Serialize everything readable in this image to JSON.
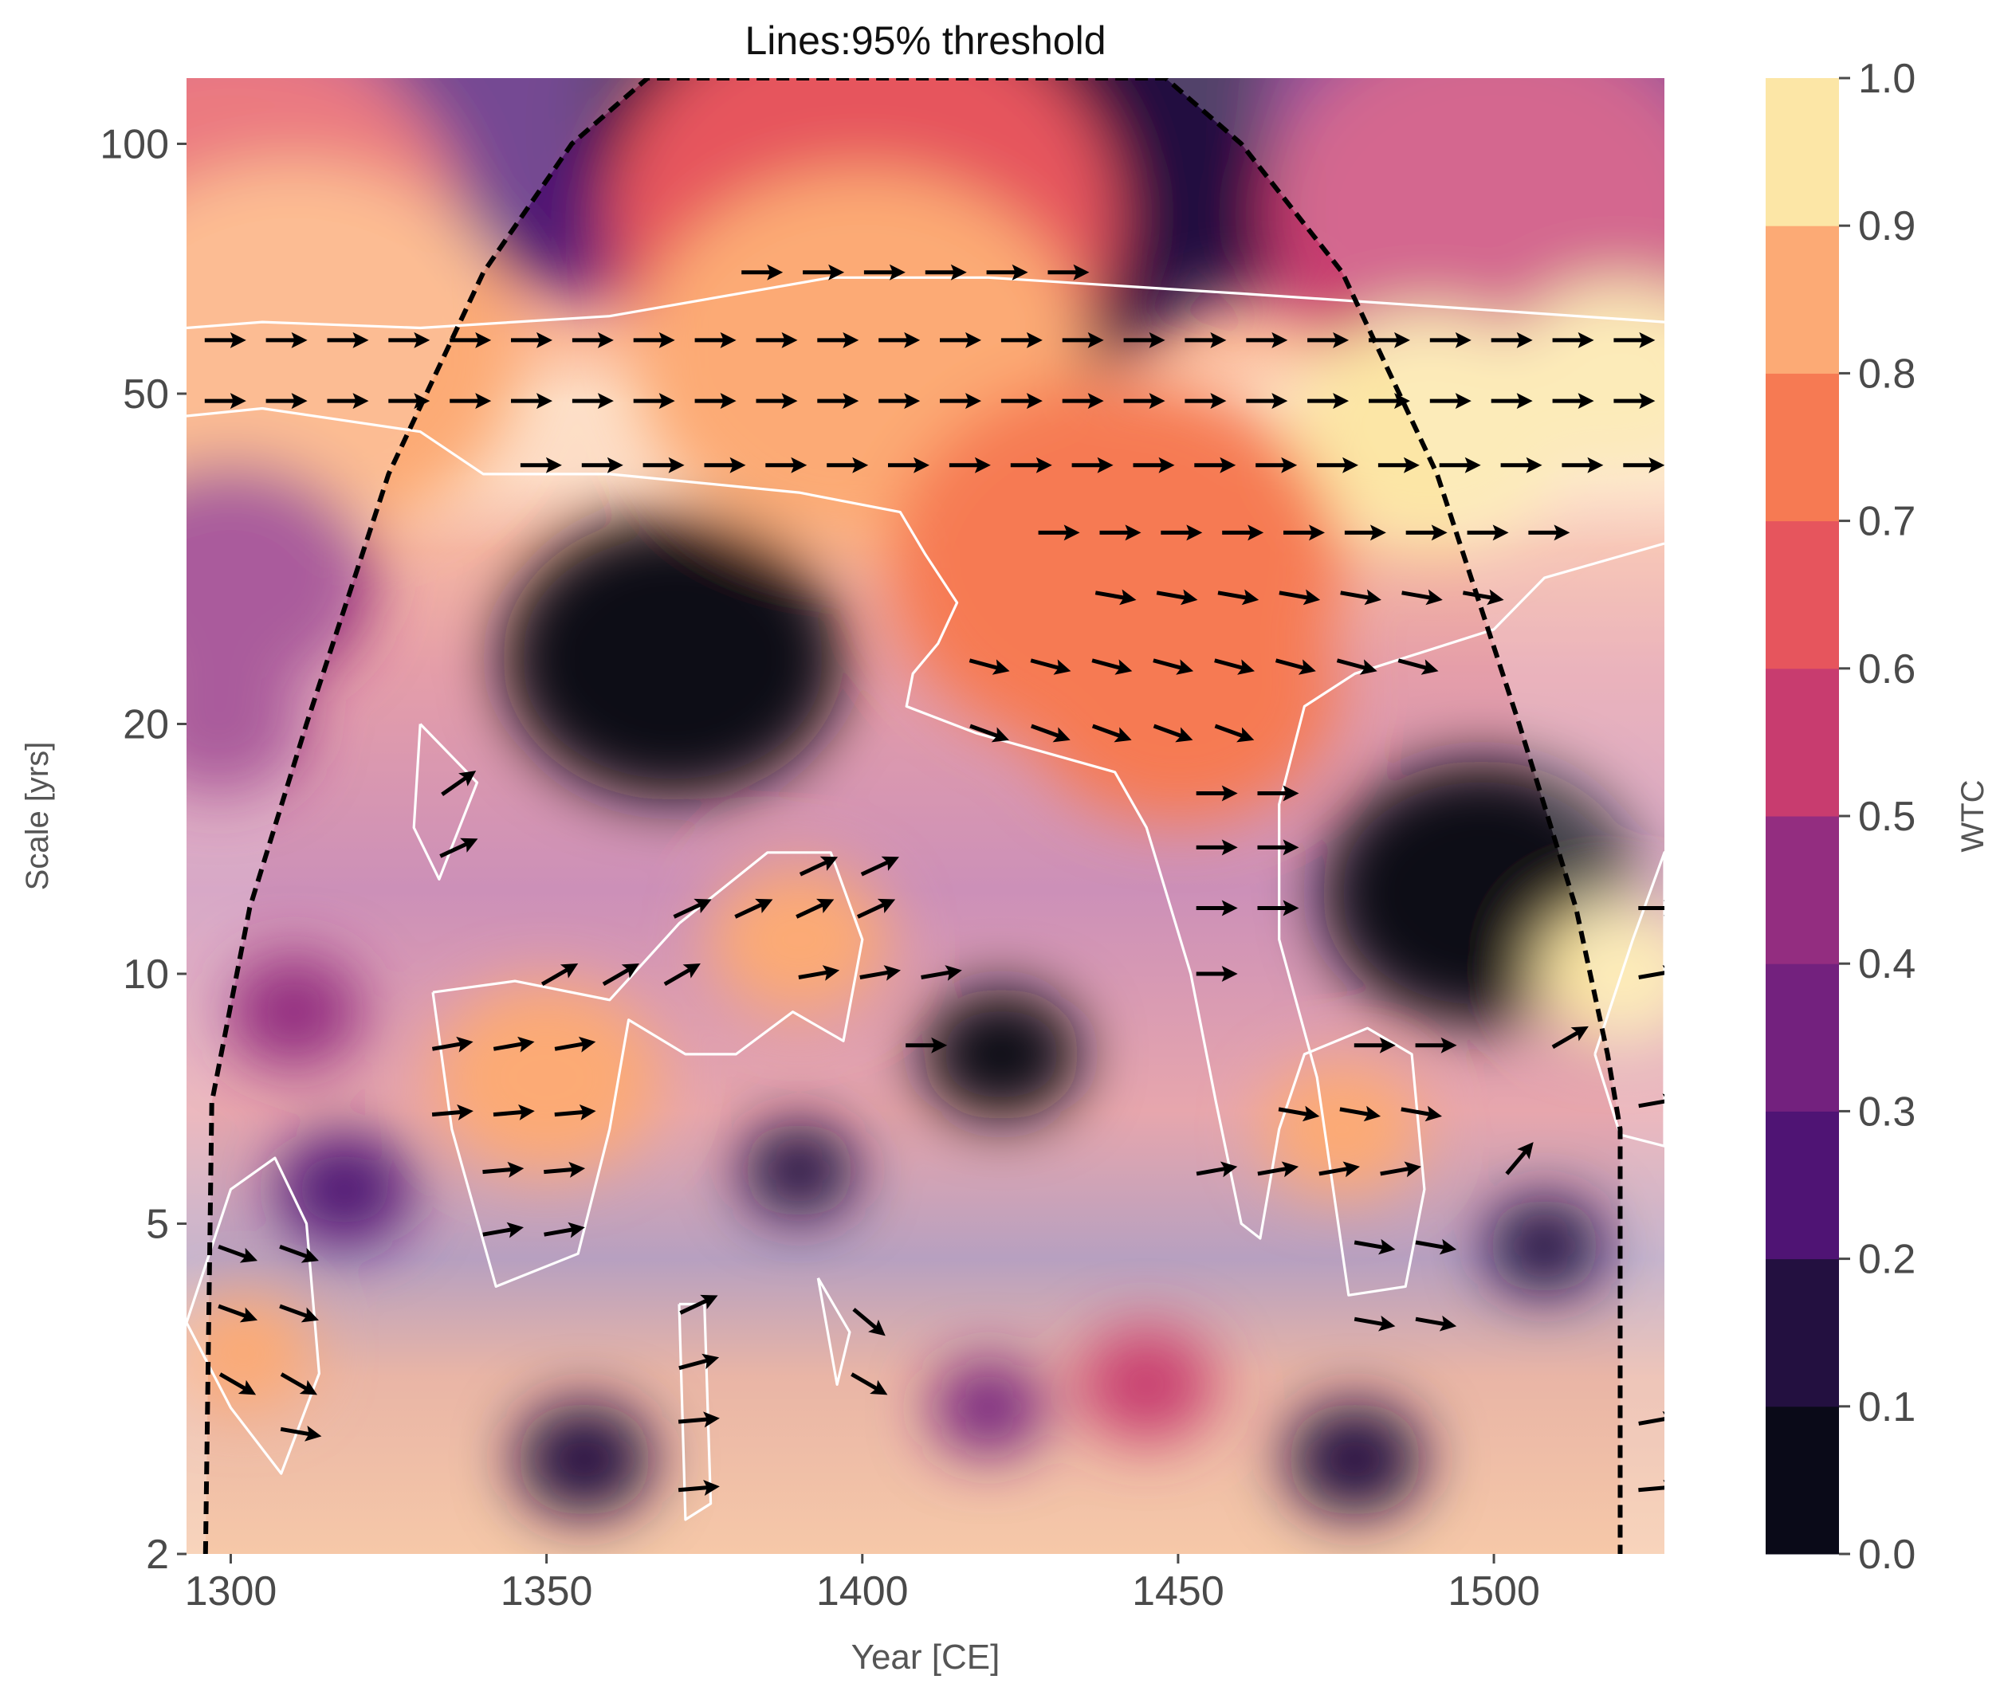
{
  "chart_data": {
    "type": "heatmap",
    "title": "Lines:95% threshold",
    "xlabel": "Year [CE]",
    "ylabel": "Scale [yrs]",
    "colorbar_label": "WTC",
    "xlim": [
      1293,
      1527
    ],
    "ylim": [
      2,
      120
    ],
    "y_scale": "log",
    "x_ticks": [
      1300,
      1350,
      1400,
      1450,
      1500
    ],
    "x_tick_labels": [
      "1300",
      "1350",
      "1400",
      "1450",
      "1500"
    ],
    "y_ticks": [
      2,
      5,
      10,
      20,
      50,
      100
    ],
    "y_tick_labels": [
      "2",
      "5",
      "10",
      "20",
      "50",
      "100"
    ],
    "colorbar_ticks": [
      "0.0",
      "0.1",
      "0.2",
      "0.3",
      "0.4",
      "0.5",
      "0.6",
      "0.7",
      "0.8",
      "0.9",
      "1.0"
    ],
    "colorbar_levels": [
      0.0,
      0.1,
      0.2,
      0.3,
      0.4,
      0.5,
      0.6,
      0.7,
      0.8,
      0.9,
      1.0
    ],
    "colormap": [
      "#0a0a18",
      "#231040",
      "#4f1474",
      "#73217e",
      "#932d80",
      "#c83c6f",
      "#e6555d",
      "#f67a53",
      "#fcaa75",
      "#fce6a6"
    ],
    "cone_of_influence": [
      [
        1296,
        2
      ],
      [
        1297,
        7
      ],
      [
        1303,
        12
      ],
      [
        1312,
        20
      ],
      [
        1325,
        40
      ],
      [
        1340,
        70
      ],
      [
        1354,
        100
      ],
      [
        1366,
        120
      ],
      [
        1448,
        120
      ],
      [
        1460,
        100
      ],
      [
        1476,
        70
      ],
      [
        1491,
        40
      ],
      [
        1504,
        20
      ],
      [
        1513,
        12
      ],
      [
        1518,
        8
      ],
      [
        1520,
        6.5
      ],
      [
        1520,
        2
      ]
    ],
    "significance_contours": [
      [
        [
          1293,
          60
        ],
        [
          1305,
          61
        ],
        [
          1330,
          60
        ],
        [
          1360,
          62
        ],
        [
          1395,
          69
        ],
        [
          1420,
          69
        ],
        [
          1460,
          66
        ],
        [
          1500,
          63
        ],
        [
          1527,
          61
        ]
      ],
      [
        [
          1293,
          47
        ],
        [
          1305,
          48
        ],
        [
          1330,
          45
        ],
        [
          1340,
          40
        ],
        [
          1360,
          40
        ],
        [
          1390,
          38
        ],
        [
          1406,
          36
        ],
        [
          1410,
          32
        ],
        [
          1415,
          28
        ],
        [
          1412,
          25
        ],
        [
          1408,
          23
        ],
        [
          1407,
          21
        ],
        [
          1418,
          19.5
        ],
        [
          1440,
          17.5
        ],
        [
          1445,
          15
        ],
        [
          1452,
          10
        ],
        [
          1456,
          7
        ],
        [
          1460,
          5
        ],
        [
          1463,
          4.8
        ],
        [
          1466,
          6.5
        ],
        [
          1470,
          8
        ],
        [
          1480,
          8.6
        ],
        [
          1487,
          8
        ],
        [
          1489,
          5.5
        ],
        [
          1486,
          4.2
        ],
        [
          1477,
          4.1
        ],
        [
          1472,
          7.5
        ],
        [
          1466,
          11
        ],
        [
          1466,
          16
        ],
        [
          1470,
          21
        ],
        [
          1478,
          23
        ],
        [
          1500,
          26
        ],
        [
          1508,
          30
        ],
        [
          1527,
          33
        ]
      ],
      [
        [
          1330,
          20
        ],
        [
          1339,
          17
        ],
        [
          1333,
          13
        ],
        [
          1329,
          15
        ],
        [
          1330,
          20
        ]
      ],
      [
        [
          1293,
          3.8
        ],
        [
          1300,
          5.5
        ],
        [
          1307,
          6
        ],
        [
          1312,
          5
        ],
        [
          1314,
          3.3
        ],
        [
          1308,
          2.5
        ],
        [
          1300,
          3
        ],
        [
          1293,
          3.8
        ]
      ],
      [
        [
          1332,
          9.5
        ],
        [
          1345,
          9.8
        ],
        [
          1360,
          9.3
        ],
        [
          1371,
          11.5
        ],
        [
          1385,
          14
        ],
        [
          1395,
          14
        ],
        [
          1400,
          11
        ],
        [
          1397,
          8.3
        ],
        [
          1389,
          9
        ],
        [
          1380,
          8
        ],
        [
          1372,
          8
        ],
        [
          1363,
          8.8
        ],
        [
          1360,
          6.5
        ],
        [
          1355,
          4.6
        ],
        [
          1342,
          4.2
        ],
        [
          1335,
          6.5
        ],
        [
          1332,
          9.5
        ]
      ],
      [
        [
          1371,
          4
        ],
        [
          1375,
          4
        ],
        [
          1376,
          2.3
        ],
        [
          1372,
          2.2
        ],
        [
          1371,
          4
        ]
      ],
      [
        [
          1516,
          8
        ],
        [
          1522,
          11
        ],
        [
          1527,
          14
        ],
        [
          1527,
          6.2
        ],
        [
          1520,
          6.4
        ],
        [
          1516,
          8
        ]
      ],
      [
        [
          1393,
          4.3
        ],
        [
          1398,
          3.7
        ],
        [
          1396,
          3.2
        ],
        [
          1393,
          4.3
        ]
      ]
    ],
    "phase_arrows": [
      {
        "y": 58,
        "x_start": 1296,
        "x_end": 1525,
        "angle_deg": 0
      },
      {
        "y": 49,
        "x_start": 1296,
        "x_end": 1525,
        "angle_deg": 0
      },
      {
        "y": 70,
        "x_start": 1381,
        "x_end": 1432,
        "angle_deg": 0
      },
      {
        "y": 41,
        "x_start": 1346,
        "x_end": 1525,
        "angle_deg": 0
      },
      {
        "y": 34,
        "x_start": 1428,
        "x_end": 1513,
        "angle_deg": 0
      },
      {
        "y": 28.5,
        "x_start": 1437,
        "x_end": 1498,
        "angle_deg": -10
      },
      {
        "y": 23.5,
        "x_start": 1417,
        "x_end": 1490,
        "angle_deg": -15
      },
      {
        "y": 19.5,
        "x_start": 1417,
        "x_end": 1462,
        "angle_deg": -20
      },
      {
        "y": 17,
        "x_start": 1333,
        "x_end": 1333,
        "angle_deg": 35
      },
      {
        "y": 14.2,
        "x_start": 1333,
        "x_end": 1333,
        "angle_deg": 25
      },
      {
        "y": 13.5,
        "x_start": 1390,
        "x_end": 1400,
        "angle_deg": 25
      },
      {
        "y": 12,
        "x_start": 1370,
        "x_end": 1400,
        "angle_deg": 25
      },
      {
        "y": 10,
        "x_start": 1349,
        "x_end": 1370,
        "angle_deg": 30
      },
      {
        "y": 10,
        "x_start": 1390,
        "x_end": 1410,
        "angle_deg": 10
      },
      {
        "y": 8.2,
        "x_start": 1332,
        "x_end": 1359,
        "angle_deg": 10
      },
      {
        "y": 8.2,
        "x_start": 1407,
        "x_end": 1407,
        "angle_deg": 0
      },
      {
        "y": 6.8,
        "x_start": 1332,
        "x_end": 1359,
        "angle_deg": 5
      },
      {
        "y": 5.8,
        "x_start": 1340,
        "x_end": 1359,
        "angle_deg": 5
      },
      {
        "y": 4.9,
        "x_start": 1340,
        "x_end": 1359,
        "angle_deg": 10
      },
      {
        "y": 14.2,
        "x_start": 1453,
        "x_end": 1463,
        "angle_deg": 0
      },
      {
        "y": 12,
        "x_start": 1453,
        "x_end": 1463,
        "angle_deg": 0
      },
      {
        "y": 16.5,
        "x_start": 1453,
        "x_end": 1463,
        "angle_deg": 0
      },
      {
        "y": 10,
        "x_start": 1453,
        "x_end": 1453,
        "angle_deg": 0
      },
      {
        "y": 8.2,
        "x_start": 1478,
        "x_end": 1488,
        "angle_deg": 0
      },
      {
        "y": 6.8,
        "x_start": 1466,
        "x_end": 1488,
        "angle_deg": -10
      },
      {
        "y": 5.8,
        "x_start": 1453,
        "x_end": 1488,
        "angle_deg": 10
      },
      {
        "y": 4.7,
        "x_start": 1478,
        "x_end": 1488,
        "angle_deg": -10
      },
      {
        "y": 3.8,
        "x_start": 1478,
        "x_end": 1488,
        "angle_deg": -10
      },
      {
        "y": 4.6,
        "x_start": 1298,
        "x_end": 1308,
        "angle_deg": -20
      },
      {
        "y": 3.9,
        "x_start": 1298,
        "x_end": 1308,
        "angle_deg": -20
      },
      {
        "y": 3.2,
        "x_start": 1298,
        "x_end": 1308,
        "angle_deg": -30
      },
      {
        "y": 2.8,
        "x_start": 1308,
        "x_end": 1308,
        "angle_deg": -10
      },
      {
        "y": 4,
        "x_start": 1371,
        "x_end": 1371,
        "angle_deg": 25
      },
      {
        "y": 3.4,
        "x_start": 1371,
        "x_end": 1371,
        "angle_deg": 15
      },
      {
        "y": 2.9,
        "x_start": 1371,
        "x_end": 1371,
        "angle_deg": 5
      },
      {
        "y": 2.4,
        "x_start": 1371,
        "x_end": 1371,
        "angle_deg": 5
      },
      {
        "y": 3.8,
        "x_start": 1398,
        "x_end": 1398,
        "angle_deg": -40
      },
      {
        "y": 3.2,
        "x_start": 1398,
        "x_end": 1398,
        "angle_deg": -30
      },
      {
        "y": 8.4,
        "x_start": 1509,
        "x_end": 1509,
        "angle_deg": 30
      },
      {
        "y": 6,
        "x_start": 1501,
        "x_end": 1501,
        "angle_deg": 50
      },
      {
        "y": 12,
        "x_start": 1523,
        "x_end": 1523,
        "angle_deg": 0
      },
      {
        "y": 10,
        "x_start": 1523,
        "x_end": 1523,
        "angle_deg": 10
      },
      {
        "y": 7,
        "x_start": 1523,
        "x_end": 1523,
        "angle_deg": 10
      },
      {
        "y": 2.9,
        "x_start": 1523,
        "x_end": 1523,
        "angle_deg": 10
      },
      {
        "y": 2.4,
        "x_start": 1523,
        "x_end": 1523,
        "angle_deg": 5
      }
    ],
    "coherence_features": [
      {
        "x": 1295,
        "y": 112,
        "r": 40,
        "v": 0.35
      },
      {
        "x": 1320,
        "y": 112,
        "r": 40,
        "v": 0.4
      },
      {
        "x": 1360,
        "y": 112,
        "r": 40,
        "v": 0.2
      },
      {
        "x": 1410,
        "y": 105,
        "r": 60,
        "v": 0.12
      },
      {
        "x": 1460,
        "y": 112,
        "r": 40,
        "v": 0.18
      },
      {
        "x": 1500,
        "y": 112,
        "r": 40,
        "v": 0.3
      },
      {
        "x": 1525,
        "y": 112,
        "r": 40,
        "v": 0.3
      },
      {
        "x": 1300,
        "y": 80,
        "r": 40,
        "v": 0.65
      },
      {
        "x": 1400,
        "y": 82,
        "r": 45,
        "v": 0.6
      },
      {
        "x": 1500,
        "y": 82,
        "r": 40,
        "v": 0.55
      },
      {
        "x": 1310,
        "y": 56,
        "r": 40,
        "v": 0.88
      },
      {
        "x": 1400,
        "y": 55,
        "r": 40,
        "v": 0.82
      },
      {
        "x": 1490,
        "y": 45,
        "r": 25,
        "v": 0.98
      },
      {
        "x": 1520,
        "y": 52,
        "r": 20,
        "v": 0.93
      },
      {
        "x": 1300,
        "y": 30,
        "r": 25,
        "v": 0.45
      },
      {
        "x": 1298,
        "y": 20,
        "r": 15,
        "v": 0.45
      },
      {
        "x": 1370,
        "y": 24,
        "r": 30,
        "v": 0.05
      },
      {
        "x": 1440,
        "y": 31,
        "r": 40,
        "v": 0.72
      },
      {
        "x": 1450,
        "y": 22,
        "r": 28,
        "v": 0.72
      },
      {
        "x": 1498,
        "y": 12.5,
        "r": 28,
        "v": 0.05
      },
      {
        "x": 1422,
        "y": 8,
        "r": 14,
        "v": 0.05
      },
      {
        "x": 1350,
        "y": 7.5,
        "r": 20,
        "v": 0.8
      },
      {
        "x": 1390,
        "y": 11,
        "r": 16,
        "v": 0.8
      },
      {
        "x": 1476,
        "y": 6.5,
        "r": 14,
        "v": 0.8
      },
      {
        "x": 1310,
        "y": 9,
        "r": 12,
        "v": 0.4
      },
      {
        "x": 1318,
        "y": 5.5,
        "r": 12,
        "v": 0.2
      },
      {
        "x": 1302,
        "y": 3.5,
        "r": 12,
        "v": 0.85
      },
      {
        "x": 1356,
        "y": 2.6,
        "r": 12,
        "v": 0.12
      },
      {
        "x": 1390,
        "y": 5.8,
        "r": 10,
        "v": 0.1
      },
      {
        "x": 1478,
        "y": 2.6,
        "r": 12,
        "v": 0.12
      },
      {
        "x": 1508,
        "y": 4.7,
        "r": 10,
        "v": 0.15
      },
      {
        "x": 1520,
        "y": 10,
        "r": 15,
        "v": 0.9
      },
      {
        "x": 1420,
        "y": 3,
        "r": 10,
        "v": 0.3
      },
      {
        "x": 1445,
        "y": 3.2,
        "r": 12,
        "v": 0.55
      }
    ]
  }
}
